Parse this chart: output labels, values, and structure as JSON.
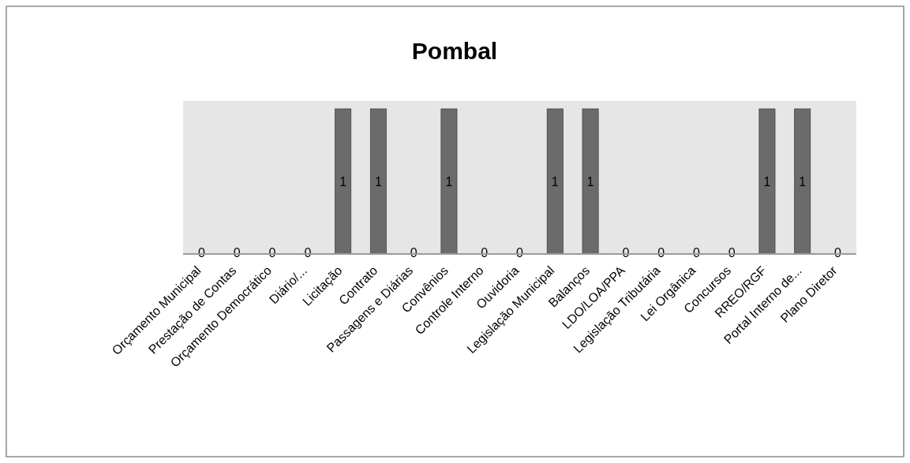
{
  "chart_data": {
    "type": "bar",
    "title": "Pombal",
    "categories": [
      "Orçamento Municipal",
      "Prestação de Contas",
      "Orçamento Democrático",
      "Diário/...",
      "Licitação",
      "Contrato",
      "Passagens e Diárias",
      "Convênios",
      "Controle Interno",
      "Ouvidoria",
      "Legislação Municipal",
      "Balanços",
      "LDO/LOA/PPA",
      "Legislação Tributária",
      "Lei Orgânica",
      "Concursos",
      "RREO/RGF",
      "Portal Interno de...",
      "Plano Diretor"
    ],
    "values": [
      0,
      0,
      0,
      0,
      1,
      1,
      0,
      1,
      0,
      0,
      1,
      1,
      0,
      0,
      0,
      0,
      1,
      1,
      0
    ],
    "color": "#6b6b6b",
    "data_labels": true
  }
}
